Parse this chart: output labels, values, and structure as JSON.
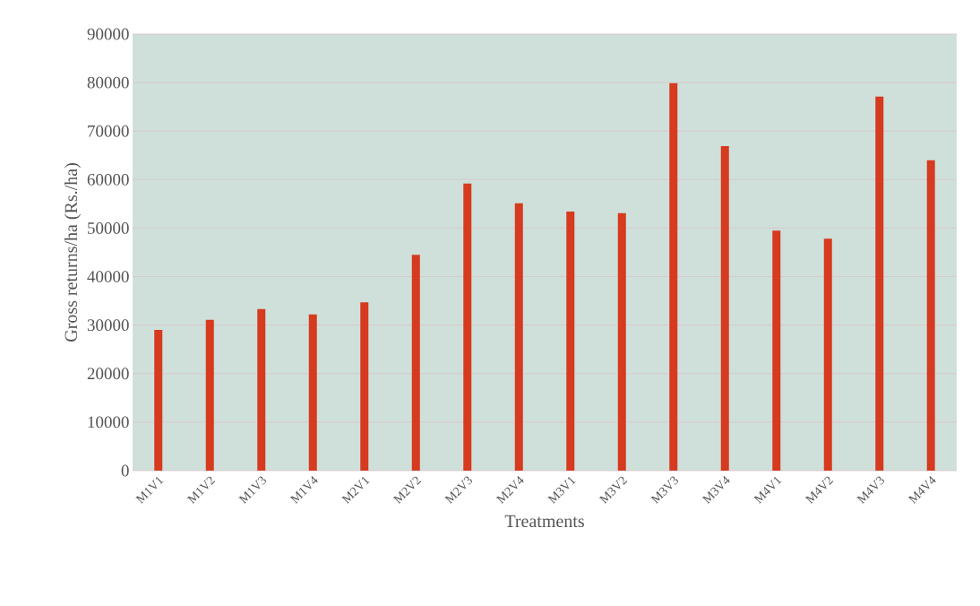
{
  "chart_data": {
    "type": "bar",
    "xlabel": "Treatments",
    "ylabel": "Gross returns/ha (Rs./ha)",
    "categories": [
      "M1V1",
      "M1V2",
      "M1V3",
      "M1V4",
      "M2V1",
      "M2V2",
      "M2V3",
      "M2V4",
      "M3V1",
      "M3V2",
      "M3V3",
      "M3V4",
      "M4V1",
      "M4V2",
      "M4V3",
      "M4V4"
    ],
    "values": [
      29000,
      31100,
      33300,
      32200,
      34700,
      44500,
      59200,
      55100,
      53400,
      53100,
      79900,
      66900,
      49500,
      47800,
      77100,
      64000
    ],
    "color": "#d63a1f",
    "ylim": [
      0,
      90000
    ],
    "yticks": [
      0,
      10000,
      20000,
      30000,
      40000,
      50000,
      60000,
      70000,
      80000,
      90000
    ],
    "grid": "y"
  }
}
